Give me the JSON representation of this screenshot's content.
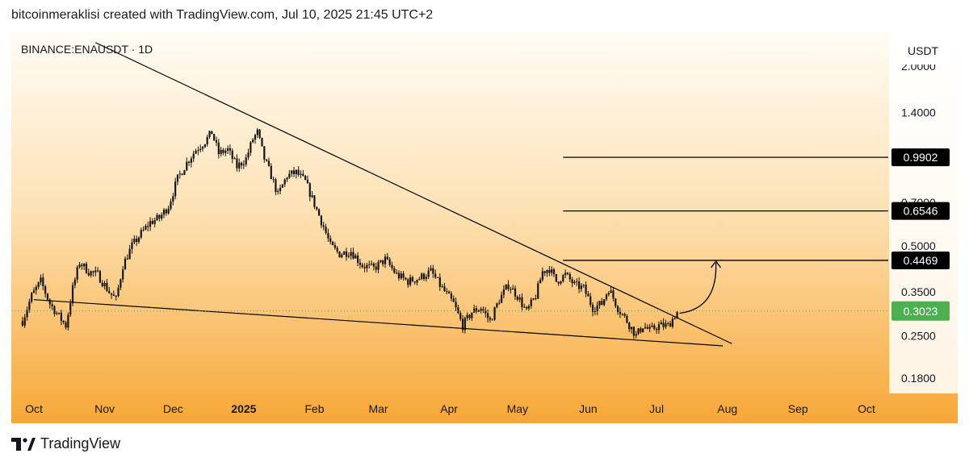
{
  "header": {
    "attribution": "bitcoinmeraklisi created with TradingView.com, Jul 10, 2025 21:45 UTC+2"
  },
  "footer": {
    "brand": "TradingView",
    "logo_icon": "tradingview-logo-icon"
  },
  "colors": {
    "bg_top": "#fffcf5",
    "bg_bottom": "#f7a737",
    "candle": "#141414",
    "line": "#000000",
    "current_badge": "#4caf50",
    "level_badge": "#000000"
  },
  "chart_data": {
    "type": "candlestick",
    "symbol": "BINANCE:ENAUSDT · 1D",
    "currency": "USDT",
    "y_scale": "log",
    "ylim": [
      0.16,
      2.6
    ],
    "y_ticks": [
      {
        "value": 2.0,
        "label": "2.0000"
      },
      {
        "value": 1.4,
        "label": "1.4000"
      },
      {
        "value": 0.7,
        "label": "0.7000"
      },
      {
        "value": 0.5,
        "label": "0.5000"
      },
      {
        "value": 0.35,
        "label": "0.3500"
      },
      {
        "value": 0.25,
        "label": "0.2500"
      },
      {
        "value": 0.18,
        "label": "0.1800"
      }
    ],
    "x_ticks": [
      {
        "date": "2024-10-01",
        "label": "Oct",
        "bold": false
      },
      {
        "date": "2024-11-01",
        "label": "Nov",
        "bold": false
      },
      {
        "date": "2024-12-01",
        "label": "Dec",
        "bold": false
      },
      {
        "date": "2025-01-01",
        "label": "2025",
        "bold": true
      },
      {
        "date": "2025-02-01",
        "label": "Feb",
        "bold": false
      },
      {
        "date": "2025-03-01",
        "label": "Mar",
        "bold": false
      },
      {
        "date": "2025-04-01",
        "label": "Apr",
        "bold": false
      },
      {
        "date": "2025-05-01",
        "label": "May",
        "bold": false
      },
      {
        "date": "2025-06-01",
        "label": "Jun",
        "bold": false
      },
      {
        "date": "2025-07-01",
        "label": "Jul",
        "bold": false
      },
      {
        "date": "2025-08-01",
        "label": "Aug",
        "bold": false
      },
      {
        "date": "2025-09-01",
        "label": "Sep",
        "bold": false
      },
      {
        "date": "2025-10-01",
        "label": "Oct",
        "bold": false
      }
    ],
    "price_path": [
      [
        "2024-09-26",
        0.28
      ],
      [
        "2024-09-30",
        0.34
      ],
      [
        "2024-10-04",
        0.38
      ],
      [
        "2024-10-08",
        0.32
      ],
      [
        "2024-10-12",
        0.29
      ],
      [
        "2024-10-15",
        0.27
      ],
      [
        "2024-10-18",
        0.36
      ],
      [
        "2024-10-21",
        0.44
      ],
      [
        "2024-10-25",
        0.41
      ],
      [
        "2024-10-29",
        0.4
      ],
      [
        "2024-11-03",
        0.35
      ],
      [
        "2024-11-06",
        0.33
      ],
      [
        "2024-11-09",
        0.43
      ],
      [
        "2024-11-13",
        0.5
      ],
      [
        "2024-11-17",
        0.55
      ],
      [
        "2024-11-21",
        0.6
      ],
      [
        "2024-11-25",
        0.62
      ],
      [
        "2024-11-29",
        0.68
      ],
      [
        "2024-12-03",
        0.84
      ],
      [
        "2024-12-07",
        0.95
      ],
      [
        "2024-12-11",
        1.05
      ],
      [
        "2024-12-15",
        1.12
      ],
      [
        "2024-12-18",
        1.2
      ],
      [
        "2024-12-21",
        1.02
      ],
      [
        "2024-12-25",
        1.05
      ],
      [
        "2024-12-29",
        0.92
      ],
      [
        "2025-01-02",
        0.98
      ],
      [
        "2025-01-05",
        1.14
      ],
      [
        "2025-01-07",
        1.2
      ],
      [
        "2025-01-10",
        0.98
      ],
      [
        "2025-01-13",
        0.86
      ],
      [
        "2025-01-16",
        0.74
      ],
      [
        "2025-01-20",
        0.86
      ],
      [
        "2025-01-24",
        0.88
      ],
      [
        "2025-01-28",
        0.82
      ],
      [
        "2025-02-02",
        0.66
      ],
      [
        "2025-02-05",
        0.58
      ],
      [
        "2025-02-08",
        0.5
      ],
      [
        "2025-02-12",
        0.47
      ],
      [
        "2025-02-17",
        0.48
      ],
      [
        "2025-02-22",
        0.43
      ],
      [
        "2025-02-27",
        0.42
      ],
      [
        "2025-03-04",
        0.45
      ],
      [
        "2025-03-09",
        0.4
      ],
      [
        "2025-03-14",
        0.38
      ],
      [
        "2025-03-19",
        0.39
      ],
      [
        "2025-03-24",
        0.41
      ],
      [
        "2025-03-29",
        0.36
      ],
      [
        "2025-04-03",
        0.32
      ],
      [
        "2025-04-07",
        0.27
      ],
      [
        "2025-04-11",
        0.3
      ],
      [
        "2025-04-15",
        0.31
      ],
      [
        "2025-04-19",
        0.28
      ],
      [
        "2025-04-23",
        0.33
      ],
      [
        "2025-04-27",
        0.37
      ],
      [
        "2025-05-01",
        0.34
      ],
      [
        "2025-05-05",
        0.3
      ],
      [
        "2025-05-09",
        0.34
      ],
      [
        "2025-05-12",
        0.41
      ],
      [
        "2025-05-15",
        0.42
      ],
      [
        "2025-05-18",
        0.38
      ],
      [
        "2025-05-22",
        0.4
      ],
      [
        "2025-05-26",
        0.37
      ],
      [
        "2025-05-30",
        0.36
      ],
      [
        "2025-06-03",
        0.31
      ],
      [
        "2025-06-07",
        0.32
      ],
      [
        "2025-06-10",
        0.36
      ],
      [
        "2025-06-14",
        0.31
      ],
      [
        "2025-06-18",
        0.28
      ],
      [
        "2025-06-22",
        0.25
      ],
      [
        "2025-06-25",
        0.27
      ],
      [
        "2025-06-28",
        0.26
      ],
      [
        "2025-07-02",
        0.27
      ],
      [
        "2025-07-06",
        0.27
      ],
      [
        "2025-07-10",
        0.3
      ]
    ],
    "price_levels": [
      {
        "value": 0.9902,
        "label": "0.9902",
        "from_date": "2025-05-21"
      },
      {
        "value": 0.6546,
        "label": "0.6546",
        "from_date": "2025-05-21"
      },
      {
        "value": 0.4469,
        "label": "0.4469",
        "from_date": "2025-05-21"
      }
    ],
    "current_price": {
      "value": 0.3023,
      "label": "0.3023"
    },
    "resistance_line": {
      "start": [
        "2024-10-28",
        2.4
      ],
      "end": [
        "2025-08-03",
        0.235
      ]
    },
    "support_line": {
      "start": [
        "2024-10-01",
        0.33
      ],
      "end": [
        "2025-07-30",
        0.231
      ]
    },
    "projection_arrow": {
      "from": [
        "2025-07-11",
        0.297
      ],
      "to": [
        "2025-07-27",
        0.4469
      ]
    }
  }
}
